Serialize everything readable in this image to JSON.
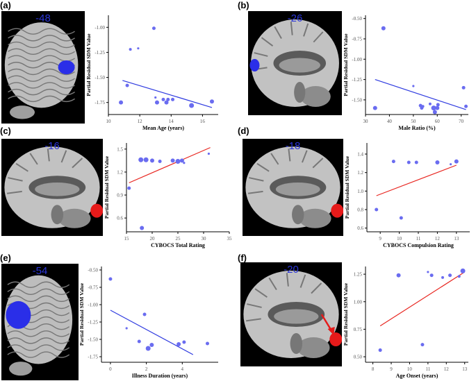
{
  "panels": [
    {
      "id": "a",
      "label": "(a)",
      "slice": "-48",
      "view": "lateral",
      "blob": "blue"
    },
    {
      "id": "b",
      "label": "(b)",
      "slice": "-26",
      "view": "medial",
      "blob": "blue"
    },
    {
      "id": "c",
      "label": "(c)",
      "slice": "-16",
      "view": "medial",
      "blob": "red"
    },
    {
      "id": "d",
      "label": "(d)",
      "slice": "-18",
      "view": "medial",
      "blob": "red"
    },
    {
      "id": "e",
      "label": "(e)",
      "slice": "-54",
      "view": "lateral",
      "blob": "blue"
    },
    {
      "id": "f",
      "label": "(f)",
      "slice": "-20",
      "view": "medial",
      "blob": "red",
      "arrow": true
    }
  ],
  "colors": {
    "blue_line": "#2f3be0",
    "red_line": "#e8251f",
    "point": "#6a6cf0",
    "blob_blue": "#2a2ee8",
    "blob_red": "#e61a1a",
    "axis": "#000000",
    "tick": "#555555"
  },
  "chart_data": [
    {
      "id": "a",
      "type": "scatter",
      "xlabel": "Mean Age (years)",
      "ylabel": "Partial Residual SDM Value",
      "xlim": [
        10,
        17
      ],
      "ylim": [
        -1.87,
        -0.88
      ],
      "xticks": [
        10,
        12,
        14,
        16
      ],
      "yticks": [
        -1.0,
        -1.25,
        -1.5,
        -1.75
      ],
      "ytick_labels": [
        "-1.00",
        "-1.25",
        "-1.50",
        "-1.75"
      ],
      "line_color": "blue",
      "trend": [
        [
          10.9,
          -1.53
        ],
        [
          16.6,
          -1.8
        ]
      ],
      "points": [
        {
          "x": 10.8,
          "y": -1.75,
          "s": 3
        },
        {
          "x": 11.2,
          "y": -1.58,
          "s": 2.5
        },
        {
          "x": 11.4,
          "y": -1.22,
          "s": 2
        },
        {
          "x": 11.9,
          "y": -1.21,
          "s": 1.6
        },
        {
          "x": 12.9,
          "y": -1.01,
          "s": 2.5
        },
        {
          "x": 13.0,
          "y": -1.7,
          "s": 1.6
        },
        {
          "x": 13.1,
          "y": -1.75,
          "s": 3
        },
        {
          "x": 13.5,
          "y": -1.72,
          "s": 2.5
        },
        {
          "x": 13.7,
          "y": -1.75,
          "s": 3
        },
        {
          "x": 13.8,
          "y": -1.72,
          "s": 2.5
        },
        {
          "x": 14.1,
          "y": -1.72,
          "s": 2.5
        },
        {
          "x": 15.3,
          "y": -1.78,
          "s": 3.5
        },
        {
          "x": 16.6,
          "y": -1.74,
          "s": 3
        }
      ]
    },
    {
      "id": "b",
      "type": "scatter",
      "xlabel": "Male Ratio (%)",
      "ylabel": "Partial Residual SDM Value",
      "xlim": [
        30,
        73
      ],
      "ylim": [
        -1.68,
        -0.46
      ],
      "xticks": [
        30,
        40,
        50,
        60,
        70
      ],
      "yticks": [
        -0.5,
        -0.75,
        -1.0,
        -1.25,
        -1.5
      ],
      "ytick_labels": [
        "-0.50",
        "-0.75",
        "-1.00",
        "-1.25",
        "-1.50"
      ],
      "line_color": "blue",
      "trend": [
        [
          34,
          -1.25
        ],
        [
          72,
          -1.62
        ]
      ],
      "points": [
        {
          "x": 34,
          "y": -1.6,
          "s": 3
        },
        {
          "x": 37.5,
          "y": -0.62,
          "s": 3
        },
        {
          "x": 50,
          "y": -1.33,
          "s": 1.6
        },
        {
          "x": 53,
          "y": -1.57,
          "s": 2.5
        },
        {
          "x": 53.5,
          "y": -1.6,
          "s": 2.5
        },
        {
          "x": 54,
          "y": -1.58,
          "s": 2
        },
        {
          "x": 57,
          "y": -1.55,
          "s": 2
        },
        {
          "x": 58.5,
          "y": -1.6,
          "s": 3.5
        },
        {
          "x": 59,
          "y": -1.65,
          "s": 3
        },
        {
          "x": 60,
          "y": -1.6,
          "s": 3
        },
        {
          "x": 60.3,
          "y": -1.56,
          "s": 2.5
        },
        {
          "x": 71,
          "y": -1.35,
          "s": 2.5
        },
        {
          "x": 72,
          "y": -1.58,
          "s": 2.5
        }
      ]
    },
    {
      "id": "c",
      "type": "scatter",
      "xlabel": "CYBOCS Total Rating",
      "ylabel": "Partial Residual SDM Value",
      "xlim": [
        15,
        35
      ],
      "ylim": [
        0.42,
        1.58
      ],
      "xticks": [
        15,
        20,
        25,
        30,
        35
      ],
      "yticks": [
        0.6,
        0.9,
        1.2,
        1.5
      ],
      "ytick_labels": [
        "0.6",
        "0.9",
        "1.2",
        "1.5"
      ],
      "line_color": "red",
      "trend": [
        [
          15.5,
          1.06
        ],
        [
          31.3,
          1.52
        ]
      ],
      "points": [
        {
          "x": 15.5,
          "y": 0.99,
          "s": 2.5
        },
        {
          "x": 17.8,
          "y": 1.36,
          "s": 3.5
        },
        {
          "x": 18.0,
          "y": 0.47,
          "s": 3
        },
        {
          "x": 18.8,
          "y": 1.36,
          "s": 3.5
        },
        {
          "x": 20,
          "y": 1.35,
          "s": 3
        },
        {
          "x": 21.5,
          "y": 1.34,
          "s": 2.5
        },
        {
          "x": 24,
          "y": 1.35,
          "s": 3
        },
        {
          "x": 25,
          "y": 1.34,
          "s": 3.5
        },
        {
          "x": 25.8,
          "y": 1.35,
          "s": 3
        },
        {
          "x": 26.2,
          "y": 1.32,
          "s": 1.6
        },
        {
          "x": 31,
          "y": 1.44,
          "s": 1.6
        }
      ]
    },
    {
      "id": "d",
      "type": "scatter",
      "xlabel": "CYBOCS Compulsion Rating",
      "ylabel": "Partial Residual SDM Value",
      "xlim": [
        8.3,
        13.7
      ],
      "ylim": [
        0.56,
        1.52
      ],
      "xticks": [
        9,
        10,
        11,
        12,
        13
      ],
      "yticks": [
        0.6,
        0.8,
        1.0,
        1.2,
        1.4
      ],
      "ytick_labels": [
        "0.6",
        "0.8",
        "1.0",
        "1.2",
        "1.4"
      ],
      "line_color": "red",
      "trend": [
        [
          8.8,
          0.95
        ],
        [
          13,
          1.28
        ]
      ],
      "points": [
        {
          "x": 8.8,
          "y": 0.8,
          "s": 2.5
        },
        {
          "x": 9.7,
          "y": 1.32,
          "s": 2.5
        },
        {
          "x": 10.1,
          "y": 0.71,
          "s": 2.5
        },
        {
          "x": 10.5,
          "y": 1.31,
          "s": 2.5
        },
        {
          "x": 10.9,
          "y": 1.31,
          "s": 2.5
        },
        {
          "x": 12.0,
          "y": 1.31,
          "s": 3
        },
        {
          "x": 12.7,
          "y": 1.29,
          "s": 1.6
        },
        {
          "x": 13.0,
          "y": 1.32,
          "s": 3
        }
      ]
    },
    {
      "id": "e",
      "type": "scatter",
      "xlabel": "Illness Duration (years)",
      "ylabel": "Partial Residual SDM Value",
      "xlim": [
        -0.5,
        6.0
      ],
      "ylim": [
        -1.83,
        -0.45
      ],
      "xticks": [
        0,
        2,
        4
      ],
      "yticks": [
        -0.5,
        -0.75,
        -1.0,
        -1.25,
        -1.5,
        -1.75
      ],
      "ytick_labels": [
        "-0.50",
        "-0.75",
        "-1.00",
        "-1.25",
        "-1.50",
        "-1.75"
      ],
      "line_color": "blue",
      "trend": [
        [
          0,
          -1.08
        ],
        [
          4.6,
          -1.72
        ]
      ],
      "points": [
        {
          "x": 0,
          "y": -0.63,
          "s": 2.5
        },
        {
          "x": 0.9,
          "y": -1.34,
          "s": 1.6
        },
        {
          "x": 1.6,
          "y": -1.53,
          "s": 2.5
        },
        {
          "x": 1.9,
          "y": -1.14,
          "s": 2.5
        },
        {
          "x": 2.1,
          "y": -1.63,
          "s": 3.5
        },
        {
          "x": 2.3,
          "y": -1.58,
          "s": 3
        },
        {
          "x": 3.8,
          "y": -1.57,
          "s": 3
        },
        {
          "x": 4.1,
          "y": -1.54,
          "s": 2.5
        },
        {
          "x": 5.4,
          "y": -1.56,
          "s": 2.5
        }
      ]
    },
    {
      "id": "f",
      "type": "scatter",
      "xlabel": "Age Onset (years)",
      "ylabel": "Partial Residual SDM Value",
      "xlim": [
        7.6,
        13.2
      ],
      "ylim": [
        0.45,
        1.32
      ],
      "xticks": [
        8,
        9,
        10,
        11,
        12,
        13
      ],
      "yticks": [
        0.5,
        0.75,
        1.0,
        1.25
      ],
      "ytick_labels": [
        "0.50",
        "0.75",
        "1.00",
        "1.25"
      ],
      "line_color": "red",
      "trend": [
        [
          8.4,
          0.78
        ],
        [
          13.0,
          1.27
        ]
      ],
      "points": [
        {
          "x": 8.4,
          "y": 0.56,
          "s": 2.5
        },
        {
          "x": 9.4,
          "y": 1.24,
          "s": 3
        },
        {
          "x": 10.7,
          "y": 0.61,
          "s": 2.5
        },
        {
          "x": 11.0,
          "y": 1.27,
          "s": 1.6
        },
        {
          "x": 11.2,
          "y": 1.24,
          "s": 2.5
        },
        {
          "x": 11.8,
          "y": 1.22,
          "s": 2
        },
        {
          "x": 12.2,
          "y": 1.24,
          "s": 2.5
        },
        {
          "x": 12.7,
          "y": 1.23,
          "s": 2
        },
        {
          "x": 12.9,
          "y": 1.28,
          "s": 3.5
        }
      ]
    }
  ]
}
